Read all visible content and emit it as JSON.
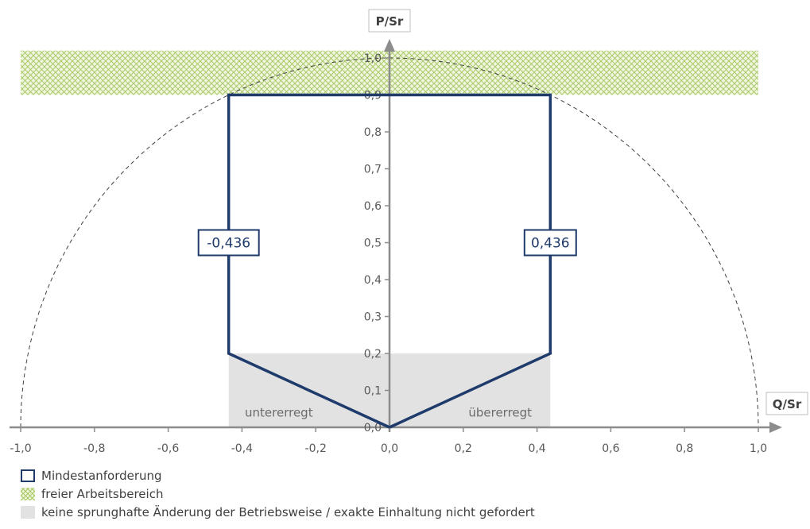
{
  "chart_data": {
    "type": "area",
    "xlabel": "Q/Sr",
    "ylabel": "P/Sr",
    "xlim": [
      -1.0,
      1.0
    ],
    "ylim": [
      0.0,
      1.0
    ],
    "x_ticks": [
      "-1,0",
      "-0,8",
      "-0,6",
      "-0,4",
      "-0,2",
      "0,0",
      "0,2",
      "0,4",
      "0,6",
      "0,8",
      "1,0"
    ],
    "y_ticks": [
      "0,0",
      "0,1",
      "0,2",
      "0,3",
      "0,4",
      "0,5",
      "0,6",
      "0,7",
      "0,8",
      "0,9",
      "1,0"
    ],
    "unit_circle": {
      "radius": 1.0,
      "style": "dashed"
    },
    "series": [
      {
        "name": "Mindestanforderung",
        "type": "line",
        "color": "#1f3b6b",
        "x": [
          0.0,
          -0.436,
          -0.436,
          0.436,
          0.436,
          0.0
        ],
        "y": [
          0.0,
          0.2,
          0.9,
          0.9,
          0.2,
          0.0
        ]
      },
      {
        "name": "freier Arbeitsbereich",
        "type": "area",
        "color": "#a9c96a",
        "pattern": "crosshatch",
        "y_from": 0.9,
        "y_to": "unit_circle"
      },
      {
        "name": "keine sprunghafte Änderung der Betriebsweise / exakte Einhaltung nicht gefordert",
        "type": "area",
        "color": "#e2e2e2",
        "x": [
          -0.436,
          0.436
        ],
        "y": [
          0.0,
          0.2
        ]
      }
    ],
    "annotations": [
      {
        "text": "-0,436",
        "x": -0.436,
        "y": 0.5,
        "boxed": true
      },
      {
        "text": "0,436",
        "x": 0.436,
        "y": 0.5,
        "boxed": true
      },
      {
        "text": "untererregt",
        "x": -0.3,
        "y": 0.04
      },
      {
        "text": "übererregt",
        "x": 0.3,
        "y": 0.04
      }
    ],
    "grid": false,
    "legend_position": "bottom-left"
  },
  "legend": [
    {
      "key": "req",
      "label": "Mindestanforderung"
    },
    {
      "key": "free",
      "label": "freier Arbeitsbereich"
    },
    {
      "key": "grey",
      "label": "keine sprunghafte Änderung der Betriebsweise / exakte Einhaltung nicht gefordert"
    }
  ]
}
